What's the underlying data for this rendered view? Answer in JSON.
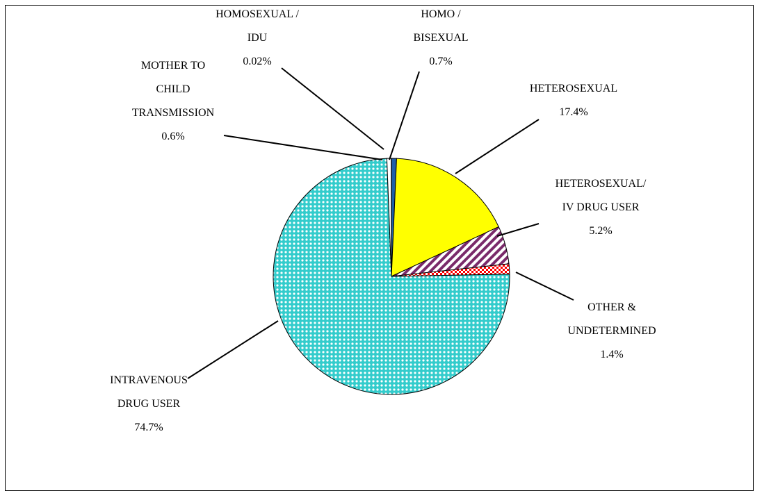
{
  "chart_data": {
    "type": "pie",
    "categories": [
      "HOMO /\nBISEXUAL",
      "HETEROSEXUAL",
      "HETEROSEXUAL/\nIV DRUG USER",
      "OTHER &\nUNDETERMINED",
      "INTRAVENOUS\nDRUG USER",
      "MOTHER TO\nCHILD\nTRANSMISSION",
      "HOMOSEXUAL /\nIDU"
    ],
    "values": [
      0.7,
      17.4,
      5.2,
      1.4,
      74.7,
      0.6,
      0.02
    ],
    "value_labels": [
      "0.7%",
      "17.4%",
      "5.2%",
      "1.4%",
      "74.7%",
      "0.6%",
      "0.02%"
    ],
    "colors": [
      "#1f5fa8",
      "#ffff00",
      "#7a2a6a",
      "#ff0000",
      "#33cccc",
      "#ffffff",
      "#000080"
    ]
  }
}
